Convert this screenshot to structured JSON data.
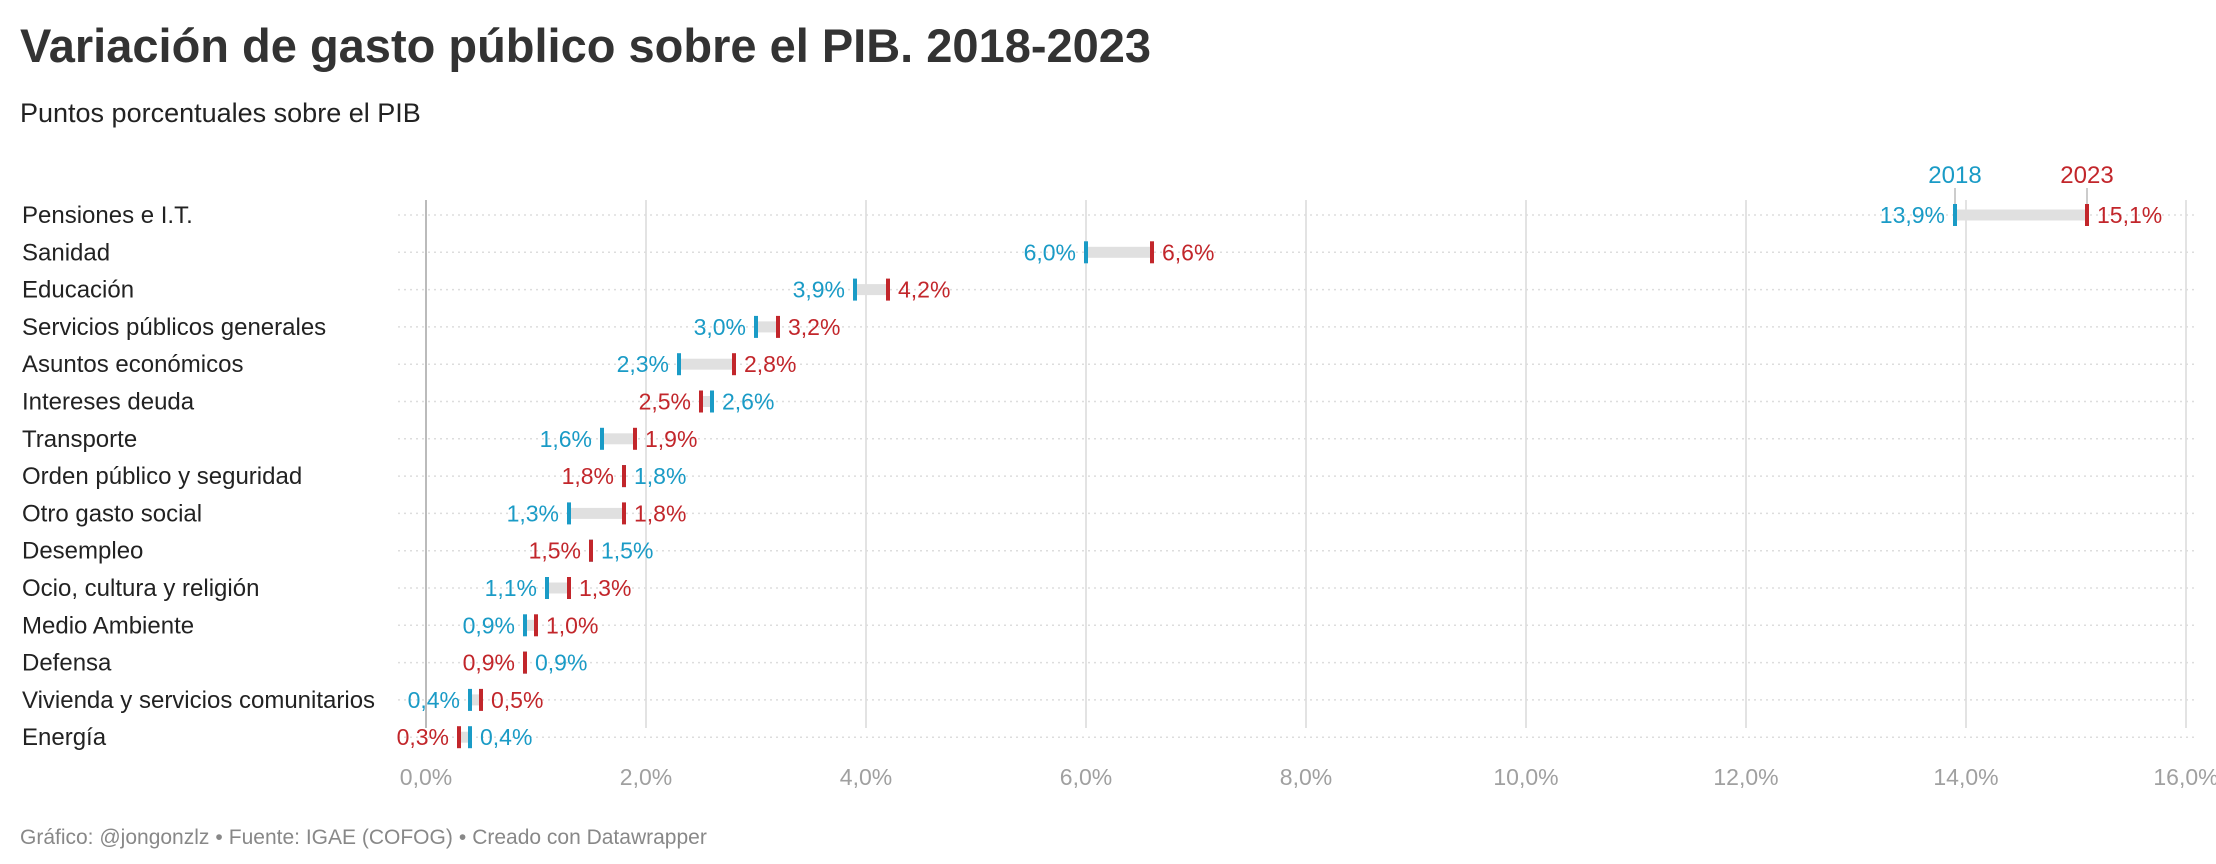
{
  "title": "Variación de gasto público sobre el PIB. 2018-2023",
  "subtitle": "Puntos porcentuales sobre el PIB",
  "footer": {
    "credit": "Gráfico: @jongonzlz",
    "source": "Fuente: IGAE (COFOG)",
    "tool": "Creado con Datawrapper",
    "separator": "•"
  },
  "chart_data": {
    "type": "range-dot",
    "title": "Variación de gasto público sobre el PIB. 2018-2023",
    "subtitle": "Puntos porcentuales sobre el PIB",
    "xlim": [
      0,
      16
    ],
    "x_ticks": [
      0,
      2,
      4,
      6,
      8,
      10,
      12,
      14,
      16
    ],
    "x_tick_labels": [
      "0,0%",
      "2,0%",
      "4,0%",
      "6,0%",
      "8,0%",
      "10,0%",
      "12,0%",
      "14,0%",
      "16,0%"
    ],
    "grid": true,
    "legend": "annotated-top",
    "series": [
      {
        "name": "2018",
        "color": "#1a9bc6"
      },
      {
        "name": "2023",
        "color": "#c2262b"
      }
    ],
    "categories": [
      "Pensiones e I.T.",
      "Sanidad",
      "Educación",
      "Servicios públicos generales",
      "Asuntos económicos",
      "Intereses deuda",
      "Transporte",
      "Orden público y seguridad",
      "Otro gasto social",
      "Desempleo",
      "Ocio, cultura y religión",
      "Medio Ambiente",
      "Defensa",
      "Vivienda y servicios comunitarios",
      "Energía"
    ],
    "values_2018": [
      13.9,
      6.0,
      3.9,
      3.0,
      2.3,
      2.6,
      1.6,
      1.8,
      1.3,
      1.5,
      1.1,
      0.9,
      0.9,
      0.4,
      0.4
    ],
    "values_2023": [
      15.1,
      6.6,
      4.2,
      3.2,
      2.8,
      2.5,
      1.9,
      1.8,
      1.8,
      1.5,
      1.3,
      1.0,
      0.9,
      0.5,
      0.3
    ],
    "labels_2018": [
      "13,9%",
      "6,0%",
      "3,9%",
      "3,0%",
      "2,3%",
      "2,6%",
      "1,6%",
      "1,8%",
      "1,3%",
      "1,5%",
      "1,1%",
      "0,9%",
      "0,9%",
      "0,4%",
      "0,4%"
    ],
    "labels_2023": [
      "15,1%",
      "6,6%",
      "4,2%",
      "3,2%",
      "2,8%",
      "2,5%",
      "1,9%",
      "1,8%",
      "1,8%",
      "1,5%",
      "1,3%",
      "1,0%",
      "0,9%",
      "0,5%",
      "0,3%"
    ]
  },
  "colors": {
    "y2018": "#1a9bc6",
    "y2023": "#c2262b",
    "range_bar": "#e0e0e0",
    "grid": "#e3e3e3",
    "axis_text": "#a0a0a0",
    "row_line": "#dddddd"
  }
}
